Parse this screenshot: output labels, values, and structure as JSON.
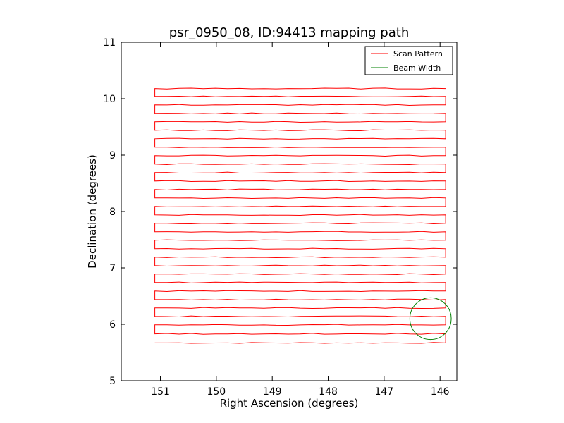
{
  "chart_data": {
    "type": "line",
    "title": "psr_0950_08, ID:94413 mapping path",
    "xlabel": "Right Ascension (degrees)",
    "ylabel": "Declination (degrees)",
    "xlim": [
      151.7,
      145.7
    ],
    "ylim": [
      5,
      11
    ],
    "x_inverted": true,
    "xticks": [
      151,
      150,
      149,
      148,
      147,
      146
    ],
    "yticks": [
      5,
      6,
      7,
      8,
      9,
      10,
      11
    ],
    "x_tick_labels": [
      "151",
      "150",
      "149",
      "148",
      "147",
      "146"
    ],
    "y_tick_labels": [
      "5",
      "6",
      "7",
      "8",
      "9",
      "10",
      "11"
    ],
    "grid": false,
    "legend": {
      "placement": "top-right",
      "entries": [
        {
          "label": "Scan Pattern",
          "color": "#ff0000"
        },
        {
          "label": "Beam Width",
          "color": "#008000"
        }
      ]
    },
    "series": [
      {
        "name": "Scan Pattern",
        "color": "#ff0000",
        "style": "raster",
        "ra_start": 151.1,
        "ra_end": 145.9,
        "dec_rows": [
          5.67,
          5.83,
          5.99,
          6.14,
          6.29,
          6.44,
          6.59,
          6.74,
          6.89,
          7.04,
          7.19,
          7.34,
          7.49,
          7.64,
          7.79,
          7.94,
          8.09,
          8.24,
          8.39,
          8.54,
          8.69,
          8.84,
          8.99,
          9.14,
          9.29,
          9.44,
          9.59,
          9.74,
          9.89,
          10.04,
          10.18
        ]
      },
      {
        "name": "Beam Width",
        "color": "#008000",
        "type": "circle",
        "center": [
          146.17,
          6.1
        ],
        "radius_deg": 0.37
      }
    ]
  }
}
